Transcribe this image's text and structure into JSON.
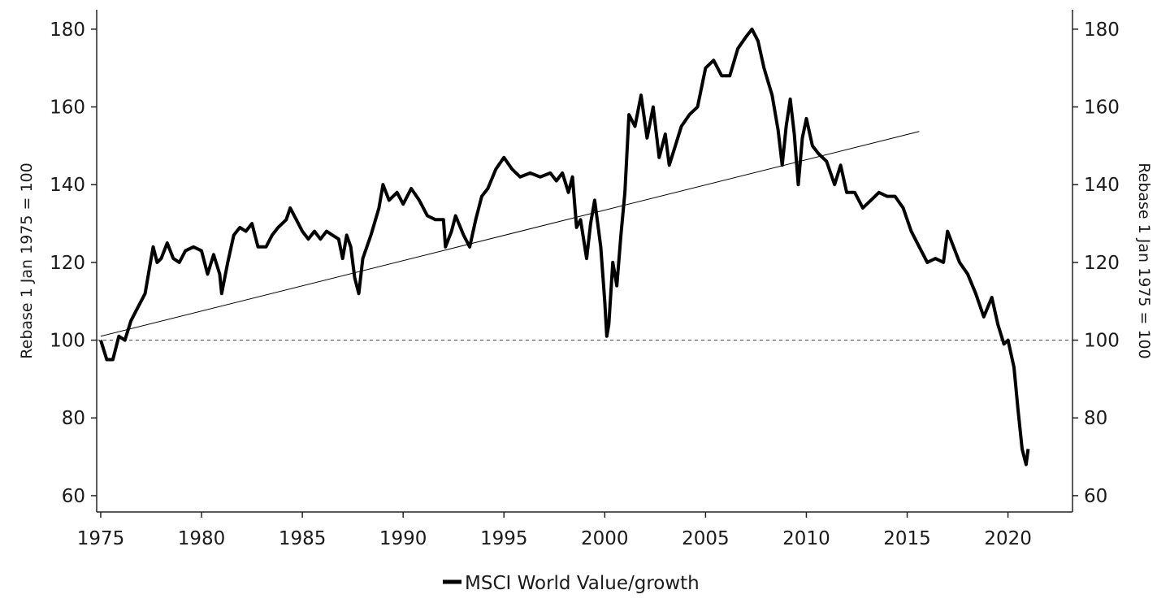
{
  "chart_data": {
    "type": "line",
    "title": "",
    "xlabel": "",
    "ylabel": "Rebase 1 Jan 1975 = 100",
    "ylabel_right": "Rebase 1 Jan 1975 = 100",
    "xlim": [
      1974.8,
      2023.2
    ],
    "ylim": [
      55.8,
      185
    ],
    "x_ticks": [
      "1975",
      "1980",
      "1985",
      "1990",
      "1995",
      "2000",
      "2005",
      "2010",
      "2015",
      "2020"
    ],
    "y_ticks": [
      "60",
      "80",
      "100",
      "120",
      "140",
      "160",
      "180"
    ],
    "grid": false,
    "legend": {
      "position": "bottom",
      "entries": [
        "MSCI World Value/growth"
      ]
    },
    "reference_line": {
      "value": 100,
      "style": "dashed"
    },
    "trend_line": {
      "x": [
        1975.0,
        2015.6
      ],
      "y": [
        101,
        153.7
      ]
    },
    "series": [
      {
        "name": "MSCI World Value/growth",
        "color": "#000000",
        "x": [
          1975.0,
          1975.3,
          1975.6,
          1975.9,
          1976.2,
          1976.5,
          1976.8,
          1977.2,
          1977.4,
          1977.6,
          1977.8,
          1978.0,
          1978.3,
          1978.6,
          1978.9,
          1979.2,
          1979.6,
          1980.0,
          1980.3,
          1980.6,
          1980.9,
          1981.0,
          1981.3,
          1981.6,
          1981.9,
          1982.2,
          1982.5,
          1982.8,
          1983.2,
          1983.5,
          1983.8,
          1984.2,
          1984.4,
          1984.7,
          1985.0,
          1985.3,
          1985.6,
          1985.9,
          1986.2,
          1986.5,
          1986.8,
          1987.0,
          1987.2,
          1987.4,
          1987.6,
          1987.8,
          1988.0,
          1988.4,
          1988.8,
          1989.0,
          1989.3,
          1989.7,
          1990.0,
          1990.4,
          1990.8,
          1991.2,
          1991.6,
          1992.0,
          1992.1,
          1992.4,
          1992.6,
          1993.0,
          1993.3,
          1993.6,
          1993.9,
          1994.2,
          1994.6,
          1995.0,
          1995.4,
          1995.8,
          1996.3,
          1996.8,
          1997.3,
          1997.6,
          1997.9,
          1998.2,
          1998.4,
          1998.6,
          1998.8,
          1999.1,
          1999.3,
          1999.5,
          1999.8,
          2000.0,
          2000.1,
          2000.2,
          2000.4,
          2000.6,
          2000.8,
          2001.0,
          2001.2,
          2001.5,
          2001.8,
          2002.1,
          2002.4,
          2002.7,
          2003.0,
          2003.2,
          2003.5,
          2003.8,
          2004.2,
          2004.6,
          2005.0,
          2005.4,
          2005.8,
          2006.2,
          2006.6,
          2007.0,
          2007.3,
          2007.6,
          2007.9,
          2008.3,
          2008.6,
          2008.8,
          2009.0,
          2009.2,
          2009.4,
          2009.6,
          2009.8,
          2010.0,
          2010.3,
          2010.6,
          2011.0,
          2011.4,
          2011.7,
          2012.0,
          2012.4,
          2012.8,
          2013.2,
          2013.6,
          2014.0,
          2014.4,
          2014.8,
          2015.2,
          2015.6,
          2016.0,
          2016.4,
          2016.8,
          2017.0,
          2017.3,
          2017.6,
          2018.0,
          2018.4,
          2018.8,
          2019.2,
          2019.5,
          2019.8,
          2020.0,
          2020.3,
          2020.5,
          2020.7,
          2020.9,
          2021.0
        ],
        "y": [
          100,
          95,
          95,
          101,
          100,
          105,
          108,
          112,
          118,
          124,
          120,
          121,
          125,
          121,
          120,
          123,
          124,
          123,
          117,
          122,
          117,
          112,
          120,
          127,
          129,
          128,
          130,
          124,
          124,
          127,
          129,
          131,
          134,
          131,
          128,
          126,
          128,
          126,
          128,
          127,
          126,
          121,
          127,
          124,
          116,
          112,
          121,
          127,
          134,
          140,
          136,
          138,
          135,
          139,
          136,
          132,
          131,
          131,
          124,
          128,
          132,
          127,
          124,
          131,
          137,
          139,
          144,
          147,
          144,
          142,
          143,
          142,
          143,
          141,
          143,
          138,
          142,
          129,
          131,
          121,
          130,
          136,
          124,
          110,
          101,
          104,
          120,
          114,
          127,
          138,
          158,
          155,
          163,
          152,
          160,
          147,
          153,
          145,
          150,
          155,
          158,
          160,
          170,
          172,
          168,
          168,
          175,
          178,
          180,
          177,
          170,
          163,
          154,
          145,
          155,
          162,
          153,
          140,
          152,
          157,
          150,
          148,
          146,
          140,
          145,
          138,
          138,
          134,
          136,
          138,
          137,
          137,
          134,
          128,
          124,
          120,
          121,
          120,
          128,
          124,
          120,
          117,
          112,
          106,
          111,
          104,
          99,
          100,
          93,
          82,
          72,
          68,
          72
        ]
      }
    ]
  }
}
